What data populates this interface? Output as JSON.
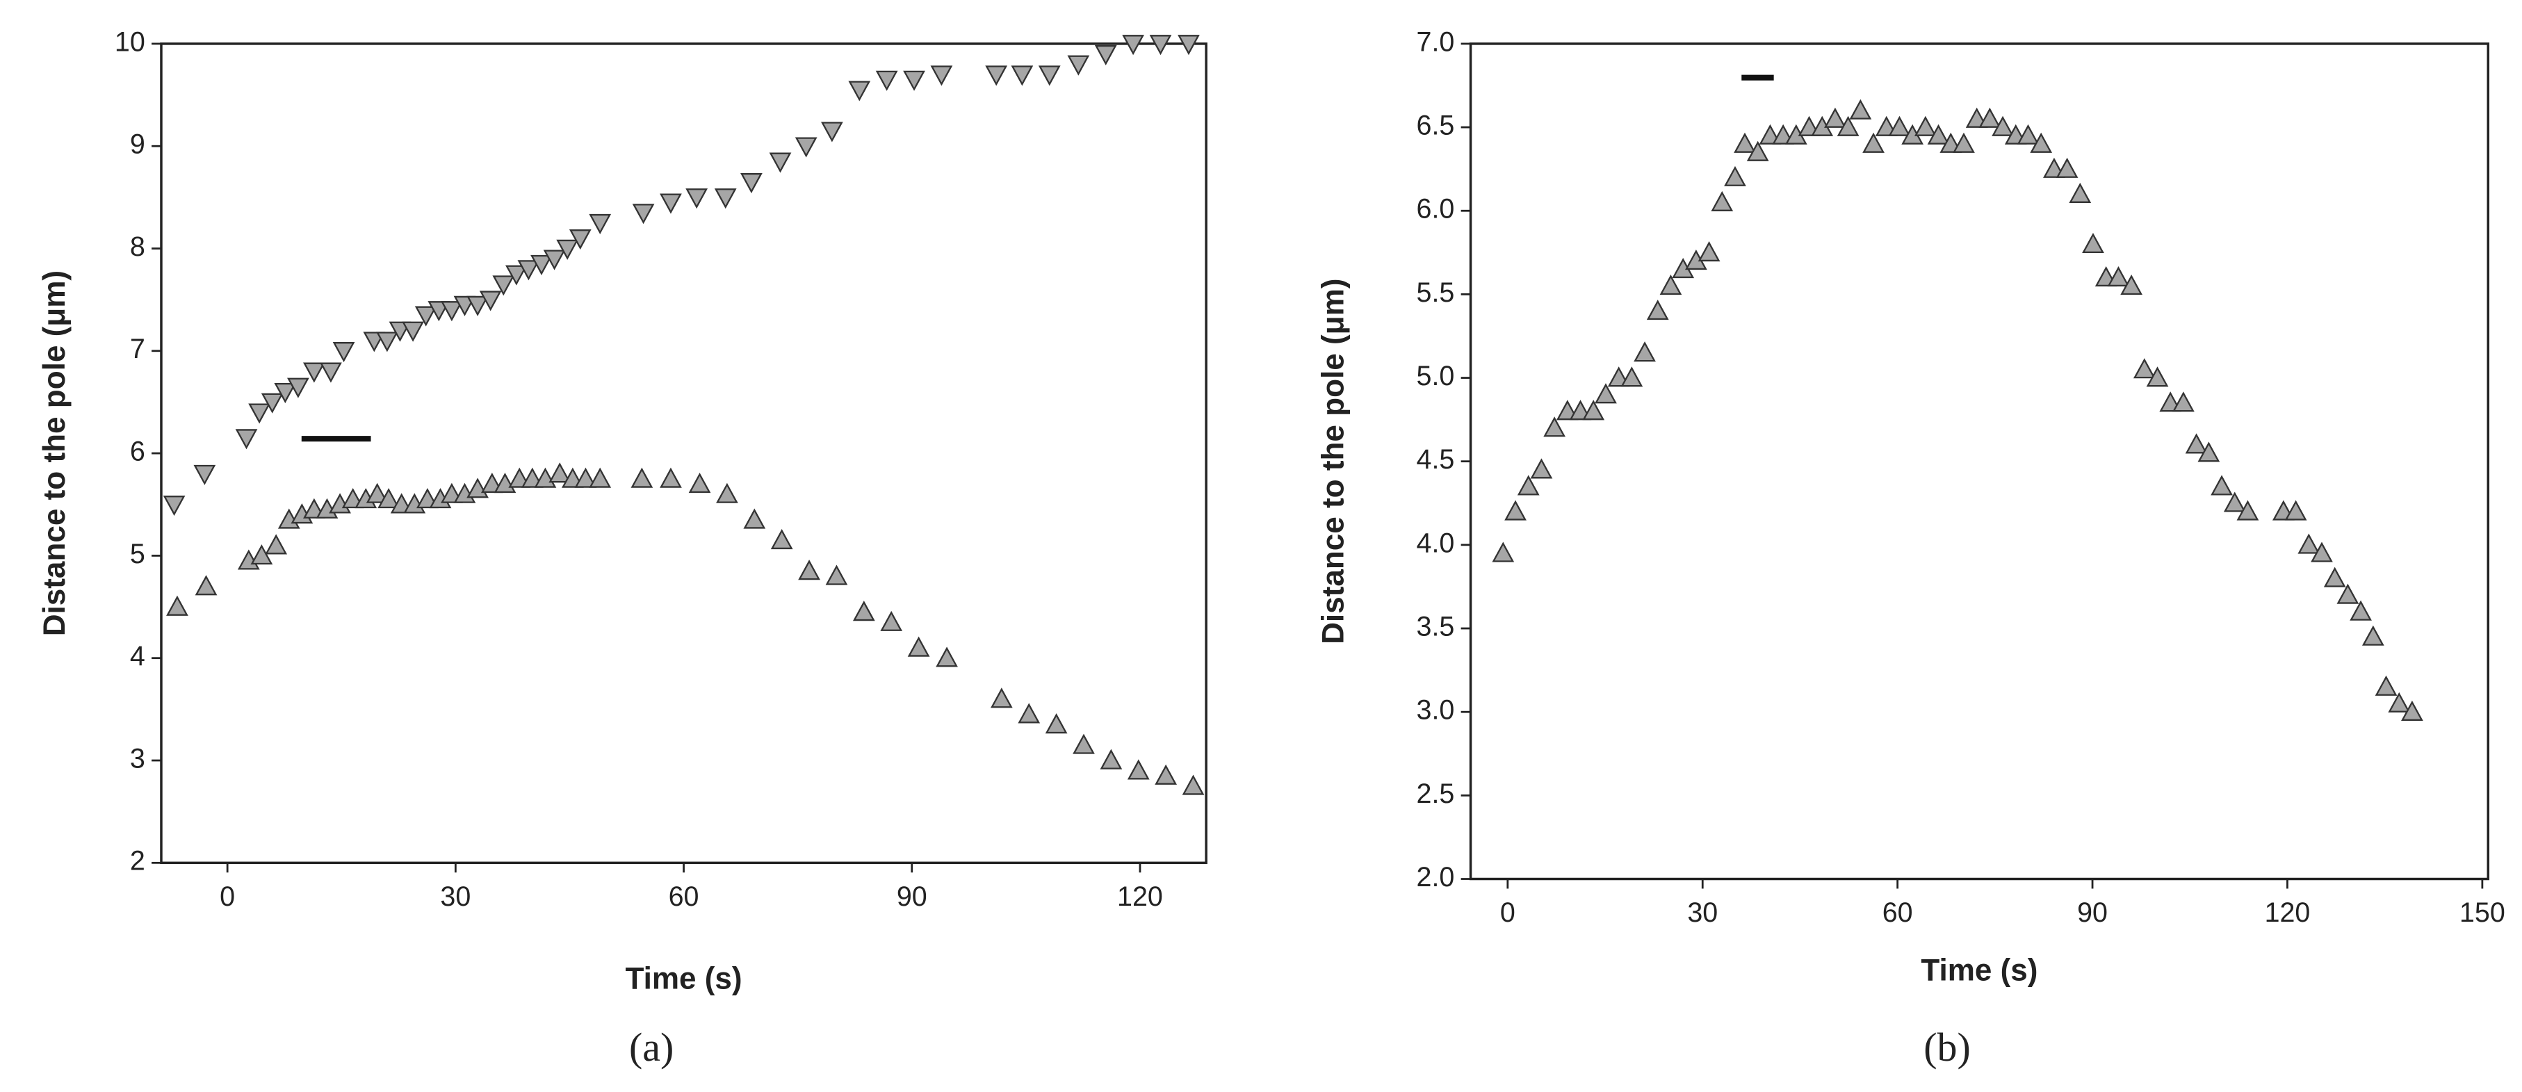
{
  "chart_data": [
    {
      "type": "scatter",
      "caption": "(a)",
      "xlabel": "Time (s)",
      "ylabel": "Distance to the pole (μm)",
      "xlim": [
        -8.7,
        128.7
      ],
      "ylim": [
        2,
        10
      ],
      "xticks": [
        0,
        30,
        60,
        90,
        120
      ],
      "yticks": [
        2,
        3,
        4,
        5,
        6,
        7,
        8,
        9,
        10
      ],
      "series": [
        {
          "marker": "down-triangle",
          "color": "#a6a6a6",
          "x": [
            -7,
            -3,
            2.5,
            4.2,
            5.9,
            7.6,
            9.3,
            11.4,
            13.6,
            15.3,
            19.3,
            21,
            22.7,
            24.4,
            26.1,
            27.8,
            29.5,
            31.2,
            32.9,
            34.6,
            36.3,
            38,
            39.6,
            41.3,
            43,
            44.7,
            46.4,
            49,
            54.7,
            58.3,
            61.7,
            65.5,
            68.9,
            72.7,
            76.1,
            79.5,
            83.1,
            86.7,
            90.3,
            93.9,
            101.1,
            104.5,
            108.1,
            111.9,
            115.5,
            119.1,
            122.7,
            126.4
          ],
          "y": [
            5.5,
            5.8,
            6.15,
            6.4,
            6.5,
            6.6,
            6.65,
            6.8,
            6.8,
            7.0,
            7.1,
            7.1,
            7.2,
            7.2,
            7.35,
            7.4,
            7.4,
            7.45,
            7.45,
            7.5,
            7.65,
            7.75,
            7.8,
            7.85,
            7.9,
            8.0,
            8.1,
            8.25,
            8.35,
            8.45,
            8.5,
            8.5,
            8.65,
            8.85,
            9.0,
            9.15,
            9.55,
            9.65,
            9.65,
            9.7,
            9.7,
            9.7,
            9.7,
            9.8,
            9.9,
            10,
            10,
            10
          ]
        },
        {
          "marker": "up-triangle",
          "color": "#a6a6a6",
          "x": [
            -6.6,
            -2.8,
            2.8,
            4.5,
            6.4,
            8.1,
            9.8,
            11.4,
            13.1,
            14.8,
            16.5,
            18.2,
            19.7,
            21.2,
            22.9,
            24.6,
            26.3,
            28,
            29.5,
            31.2,
            32.9,
            34.8,
            36.5,
            38.4,
            40.1,
            41.8,
            43.7,
            45.4,
            47.1,
            49,
            54.5,
            58.3,
            62.1,
            65.7,
            69.3,
            72.9,
            76.5,
            80.1,
            83.7,
            87.3,
            90.9,
            94.6,
            101.8,
            105.4,
            109,
            112.6,
            116.2,
            119.8,
            123.4,
            127
          ],
          "y": [
            4.5,
            4.7,
            4.95,
            5.0,
            5.1,
            5.35,
            5.4,
            5.45,
            5.45,
            5.5,
            5.55,
            5.55,
            5.6,
            5.55,
            5.5,
            5.5,
            5.55,
            5.55,
            5.6,
            5.6,
            5.65,
            5.7,
            5.7,
            5.75,
            5.75,
            5.75,
            5.8,
            5.75,
            5.75,
            5.75,
            5.75,
            5.75,
            5.7,
            5.6,
            5.35,
            5.15,
            4.85,
            4.8,
            4.45,
            4.35,
            4.1,
            4.0,
            3.6,
            3.45,
            3.35,
            3.15,
            3.0,
            2.9,
            2.85,
            2.75
          ]
        }
      ]
    },
    {
      "type": "scatter",
      "caption": "(b)",
      "xlabel": "Time (s)",
      "ylabel": "Distance to the pole (μm)",
      "xlim": [
        -5.7,
        150.9
      ],
      "ylim": [
        2,
        7
      ],
      "xticks": [
        0,
        30,
        60,
        90,
        120,
        150
      ],
      "yticks": [
        {
          "value": 2,
          "label": "2.0"
        },
        2.5,
        {
          "value": 3,
          "label": "3.0"
        },
        3.5,
        {
          "value": 4,
          "label": "4.0"
        },
        4.5,
        {
          "value": 5,
          "label": "5.0"
        },
        5.5,
        {
          "value": 6,
          "label": "6.0"
        },
        6.5,
        {
          "value": 7,
          "label": "7.0"
        }
      ],
      "series": [
        {
          "marker": "up-triangle",
          "color": "#a6a6a6",
          "x": [
            -0.7,
            1.2,
            3.2,
            5.2,
            7.2,
            9.2,
            11.2,
            13.2,
            15.1,
            17.1,
            19.1,
            21.1,
            23.1,
            25.1,
            27,
            29,
            31,
            33,
            35,
            36.5,
            38.5,
            40.4,
            42.4,
            44.4,
            46.4,
            48.4,
            50.4,
            52.4,
            54.3,
            56.3,
            58.3,
            60.3,
            62.3,
            64.3,
            66.3,
            68.2,
            70.2,
            72.2,
            74.2,
            76.2,
            78.2,
            80.1,
            82.1,
            84.1,
            86.1,
            88.1,
            90.1,
            92.1,
            94,
            96,
            98,
            100,
            102,
            104,
            106,
            107.9,
            109.9,
            111.9,
            113.9,
            119.4,
            121.3,
            123.3,
            125.3,
            127.3,
            129.3,
            131.3,
            133.2,
            135.2,
            137.2,
            139.2
          ],
          "y": [
            3.95,
            4.2,
            4.35,
            4.45,
            4.7,
            4.8,
            4.8,
            4.8,
            4.9,
            5.0,
            5.0,
            5.15,
            5.4,
            5.55,
            5.65,
            5.7,
            5.75,
            6.05,
            6.2,
            6.4,
            6.35,
            6.45,
            6.45,
            6.45,
            6.5,
            6.5,
            6.55,
            6.5,
            6.6,
            6.4,
            6.5,
            6.5,
            6.45,
            6.5,
            6.45,
            6.4,
            6.4,
            6.55,
            6.55,
            6.5,
            6.45,
            6.45,
            6.4,
            6.25,
            6.25,
            6.1,
            5.8,
            5.6,
            5.6,
            5.55,
            5.05,
            5.0,
            4.85,
            4.85,
            4.6,
            4.55,
            4.35,
            4.25,
            4.2,
            4.2,
            4.2,
            4.0,
            3.95,
            3.8,
            3.7,
            3.6,
            3.45,
            3.15,
            3.05,
            3.0
          ]
        }
      ]
    }
  ]
}
